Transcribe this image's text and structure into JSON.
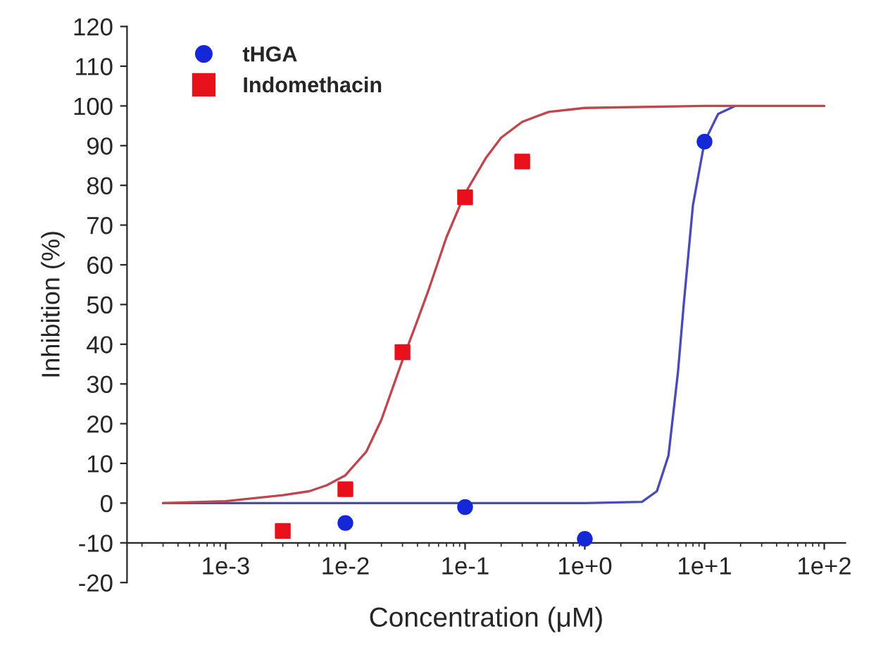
{
  "chart_data": {
    "type": "scatter",
    "xlabel": "Concentration (μM)",
    "ylabel": "Inhibition (%)",
    "log": "x",
    "xlim": [
      0.00015,
      150
    ],
    "ylim": [
      -20,
      120
    ],
    "xticks": [
      {
        "value": 0.001,
        "label": "1e-3"
      },
      {
        "value": 0.01,
        "label": "1e-2"
      },
      {
        "value": 0.1,
        "label": "1e-1"
      },
      {
        "value": 1,
        "label": "1e+0"
      },
      {
        "value": 10,
        "label": "1e+1"
      },
      {
        "value": 100,
        "label": "1e+2"
      }
    ],
    "yticks": [
      -20,
      -10,
      0,
      10,
      20,
      30,
      40,
      50,
      60,
      70,
      80,
      90,
      100,
      110,
      120
    ],
    "grid": false,
    "legend": "top left",
    "series": [
      {
        "name": "tHGA",
        "marker": "circle",
        "color": "#1428d8",
        "x": [
          0.01,
          0.1,
          1,
          10
        ],
        "values": [
          -5,
          -1,
          -9,
          91
        ]
      },
      {
        "name": "Indomethacin",
        "marker": "square",
        "color": "#e8101a",
        "x": [
          0.003,
          0.01,
          0.03,
          0.1,
          0.3
        ],
        "values": [
          -7,
          3.5,
          38,
          77,
          86
        ]
      },
      {
        "type": "line",
        "marker": "none",
        "line_style": "solid",
        "color": "#4a4ab8",
        "x": [
          0.0003,
          0.001,
          0.01,
          0.1,
          1,
          3,
          4,
          5,
          6,
          6.7,
          8,
          10,
          13,
          18
        ],
        "values": [
          0,
          0,
          0,
          0,
          0,
          0.3,
          3,
          12,
          33,
          50,
          75,
          91,
          98,
          100
        ]
      },
      {
        "type": "line",
        "marker": "none",
        "line_style": "solid",
        "color": "#c0464e",
        "x": [
          0.0003,
          0.001,
          0.003,
          0.005,
          0.007,
          0.01,
          0.015,
          0.02,
          0.03,
          0.04,
          0.05,
          0.07,
          0.1,
          0.15,
          0.2,
          0.3,
          0.5,
          1,
          10,
          100
        ],
        "values": [
          0,
          0.5,
          2,
          3,
          4.5,
          7,
          13,
          21,
          36,
          46,
          54,
          67,
          78,
          87,
          92,
          96,
          98.5,
          99.5,
          100,
          100
        ]
      }
    ]
  }
}
